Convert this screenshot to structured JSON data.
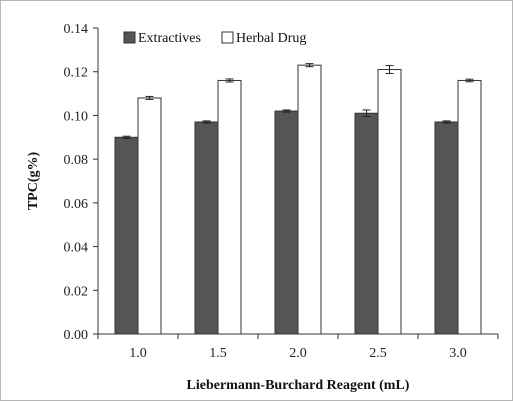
{
  "chart_data": {
    "type": "bar",
    "categories": [
      "1.0",
      "1.5",
      "2.0",
      "2.5",
      "3.0"
    ],
    "series": [
      {
        "name": "Extractives",
        "values": [
          0.09,
          0.097,
          0.102,
          0.101,
          0.097
        ],
        "errors": [
          0.0005,
          0.0005,
          0.0005,
          0.0015,
          0.0005
        ],
        "color": "#555555"
      },
      {
        "name": "Herbal Drug",
        "values": [
          0.108,
          0.116,
          0.123,
          0.121,
          0.116
        ],
        "errors": [
          0.0007,
          0.0007,
          0.0007,
          0.0018,
          0.0006
        ],
        "color": "#ffffff"
      }
    ],
    "xlabel": "Liebermann-Burchard Reagent (mL)",
    "ylabel": "TPC(g%)",
    "ylim": [
      0,
      0.14
    ],
    "yticks": [
      "0.00",
      "0.02",
      "0.04",
      "0.06",
      "0.08",
      "0.10",
      "0.12",
      "0.14"
    ],
    "grid": false,
    "legend_position": "top-left",
    "error_bars": true
  }
}
